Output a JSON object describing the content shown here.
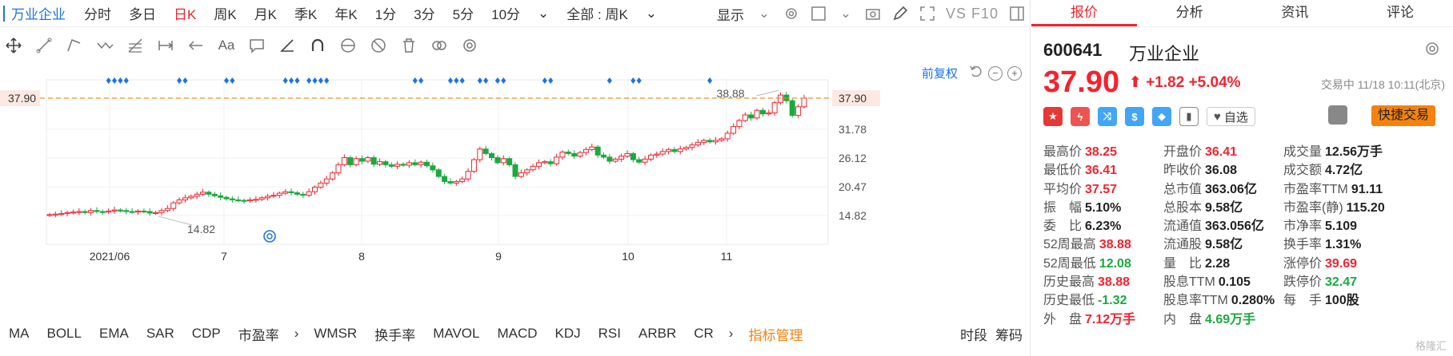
{
  "toolbar": {
    "stock_name": "万业企业",
    "periods": [
      "分时",
      "多日",
      "日K",
      "周K",
      "月K",
      "季K",
      "年K",
      "1分",
      "3分",
      "5分",
      "10分"
    ],
    "active_period": "日K",
    "range_select": "全部 : 周K",
    "display_label": "显示",
    "vs_label": "VS F10"
  },
  "draw_tools": {
    "text_tool": "Aa"
  },
  "chart": {
    "adjust_label": "前复权",
    "price_label_left": "37.90",
    "price_label_right": "37.90",
    "max_annotation": "38.88",
    "min_annotation": "14.82",
    "y_ticks": [
      "31.78",
      "26.12",
      "20.47",
      "14.82"
    ],
    "x_ticks": [
      "2021/06",
      "7",
      "8",
      "9",
      "10",
      "11"
    ]
  },
  "chart_data": {
    "type": "candlestick",
    "title": "",
    "ylim": [
      9.17,
      41.5
    ],
    "y_ticks": [
      37.9,
      31.78,
      26.12,
      20.47,
      14.82
    ],
    "x_labels": [
      "2021/06",
      "7",
      "8",
      "9",
      "10",
      "11"
    ],
    "current_price": 37.9,
    "high_marker": 38.88,
    "low_marker": 14.82,
    "candles_approx_close": [
      15.0,
      15.1,
      15.2,
      15.4,
      15.5,
      15.6,
      15.4,
      15.8,
      15.6,
      15.5,
      15.7,
      15.9,
      15.8,
      15.6,
      15.5,
      15.7,
      15.6,
      15.3,
      15.4,
      15.8,
      16.2,
      17.3,
      17.9,
      18.3,
      18.6,
      19.0,
      19.4,
      19.0,
      18.7,
      18.4,
      18.1,
      17.9,
      17.8,
      17.7,
      17.9,
      18.0,
      18.3,
      18.6,
      18.8,
      19.2,
      19.5,
      19.3,
      19.0,
      18.8,
      19.5,
      20.4,
      21.2,
      22.0,
      23.2,
      24.8,
      26.2,
      24.8,
      26.0,
      25.5,
      26.2,
      24.9,
      25.4,
      24.8,
      24.5,
      24.9,
      24.7,
      25.2,
      24.8,
      25.3,
      24.6,
      23.8,
      22.5,
      21.5,
      21.2,
      21.5,
      22.0,
      23.5,
      25.8,
      27.9,
      27.0,
      26.2,
      25.2,
      26.0,
      24.8,
      22.5,
      23.2,
      23.8,
      24.5,
      25.2,
      25.4,
      25.0,
      26.3,
      27.3,
      27.0,
      26.5,
      27.2,
      27.8,
      28.3,
      26.7,
      26.3,
      25.5,
      25.9,
      26.5,
      27.0,
      25.8,
      25.3,
      25.9,
      26.7,
      26.9,
      27.4,
      27.8,
      27.4,
      27.9,
      28.2,
      28.7,
      29.2,
      29.6,
      29.3,
      29.6,
      29.9,
      31.0,
      32.3,
      33.5,
      34.6,
      34.0,
      35.5,
      34.8,
      35.0,
      37.0,
      38.5,
      37.4,
      34.5,
      36.2,
      37.9
    ],
    "indicators": [
      "MA",
      "BOLL",
      "EMA",
      "SAR",
      "CDP",
      "市盈率",
      "WMSR",
      "换手率",
      "MAVOL",
      "MACD",
      "KDJ",
      "RSI",
      "ARBR",
      "CR"
    ]
  },
  "indicators": {
    "items": [
      "MA",
      "BOLL",
      "EMA",
      "SAR",
      "CDP",
      "市盈率"
    ],
    "items2": [
      "WMSR",
      "换手率",
      "MAVOL",
      "MACD",
      "KDJ",
      "RSI",
      "ARBR",
      "CR"
    ],
    "manager": "指标管理",
    "right": [
      "时段",
      "筹码"
    ]
  },
  "quote": {
    "tabs": [
      "报价",
      "分析",
      "资讯",
      "评论"
    ],
    "active_tab": "报价",
    "code": "600641",
    "name": "万业企业",
    "price": "37.90",
    "change": "+1.82",
    "change_pct": "+5.04%",
    "status": "交易中 11/18 10:11(北京)",
    "favorite_label": "自选",
    "quick_trade_label": "快捷交易",
    "stats": [
      [
        [
          "最高价",
          "38.25",
          "red"
        ],
        [
          "开盘价",
          "36.41",
          "red"
        ],
        [
          "成交量",
          "12.56万手",
          "dark"
        ]
      ],
      [
        [
          "最低价",
          "36.41",
          "red"
        ],
        [
          "昨收价",
          "36.08",
          "dark"
        ],
        [
          "成交额",
          "4.72亿",
          "dark"
        ]
      ],
      [
        [
          "平均价",
          "37.57",
          "red"
        ],
        [
          "总市值",
          "363.06亿",
          "dark"
        ],
        [
          "市盈率TTM",
          "91.11",
          "dark"
        ]
      ],
      [
        [
          "振　幅",
          "5.10%",
          "dark"
        ],
        [
          "总股本",
          "9.58亿",
          "dark"
        ],
        [
          "市盈率(静)",
          "115.20",
          "dark"
        ]
      ],
      [
        [
          "委　比",
          "6.23%",
          "dark"
        ],
        [
          "流通值",
          "363.056亿",
          "dark"
        ],
        [
          "市净率",
          "5.109",
          "dark"
        ]
      ],
      [
        [
          "52周最高",
          "38.88",
          "red"
        ],
        [
          "流通股",
          "9.58亿",
          "dark"
        ],
        [
          "换手率",
          "1.31%",
          "dark"
        ]
      ],
      [
        [
          "52周最低",
          "12.08",
          "green"
        ],
        [
          "量　比",
          "2.28",
          "dark"
        ],
        [
          "涨停价",
          "39.69",
          "red"
        ]
      ],
      [
        [
          "历史最高",
          "38.88",
          "red"
        ],
        [
          "股息TTM",
          "0.105",
          "dark"
        ],
        [
          "跌停价",
          "32.47",
          "green"
        ]
      ],
      [
        [
          "历史最低",
          "-1.32",
          "green"
        ],
        [
          "股息率TTM",
          "0.280%",
          "dark"
        ],
        [
          "每　手",
          "100股",
          "dark"
        ]
      ],
      [
        [
          "外　盘",
          "7.12万手",
          "red"
        ],
        [
          "内　盘",
          "4.69万手",
          "green"
        ],
        [
          "",
          "",
          "dark"
        ]
      ]
    ],
    "watermark": "格隆汇"
  }
}
